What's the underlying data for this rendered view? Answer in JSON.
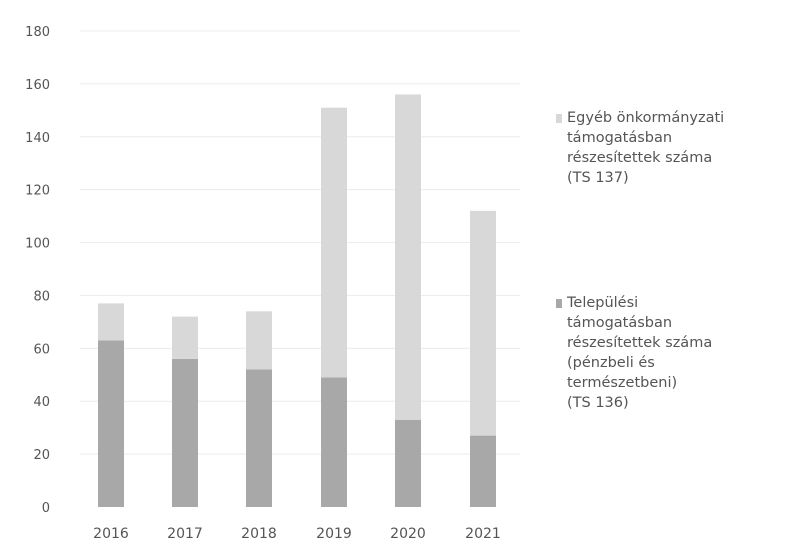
{
  "chart_data": {
    "type": "bar",
    "stacked": true,
    "title": "",
    "xlabel": "",
    "ylabel": "",
    "categories": [
      "2016",
      "2017",
      "2018",
      "2019",
      "2020",
      "2021"
    ],
    "ylim": [
      0,
      180
    ],
    "yticks": [
      0,
      20,
      40,
      60,
      80,
      100,
      120,
      140,
      160,
      180
    ],
    "grid": true,
    "legend_position": "right",
    "series": [
      {
        "name": "Települési\ntámogatásban\nrészesítettek száma\n(pénzbeli és\ntermészetbeni)\n(TS 136)",
        "values": [
          63,
          56,
          52,
          49,
          33,
          27
        ],
        "color": "#a8a8a8"
      },
      {
        "name": "Egyéb önkormányzati\ntámogatásban\nrészesítettek száma\n(TS 137)",
        "values": [
          14,
          16,
          22,
          102,
          123,
          85
        ],
        "color": "#d8d8d8"
      }
    ]
  }
}
